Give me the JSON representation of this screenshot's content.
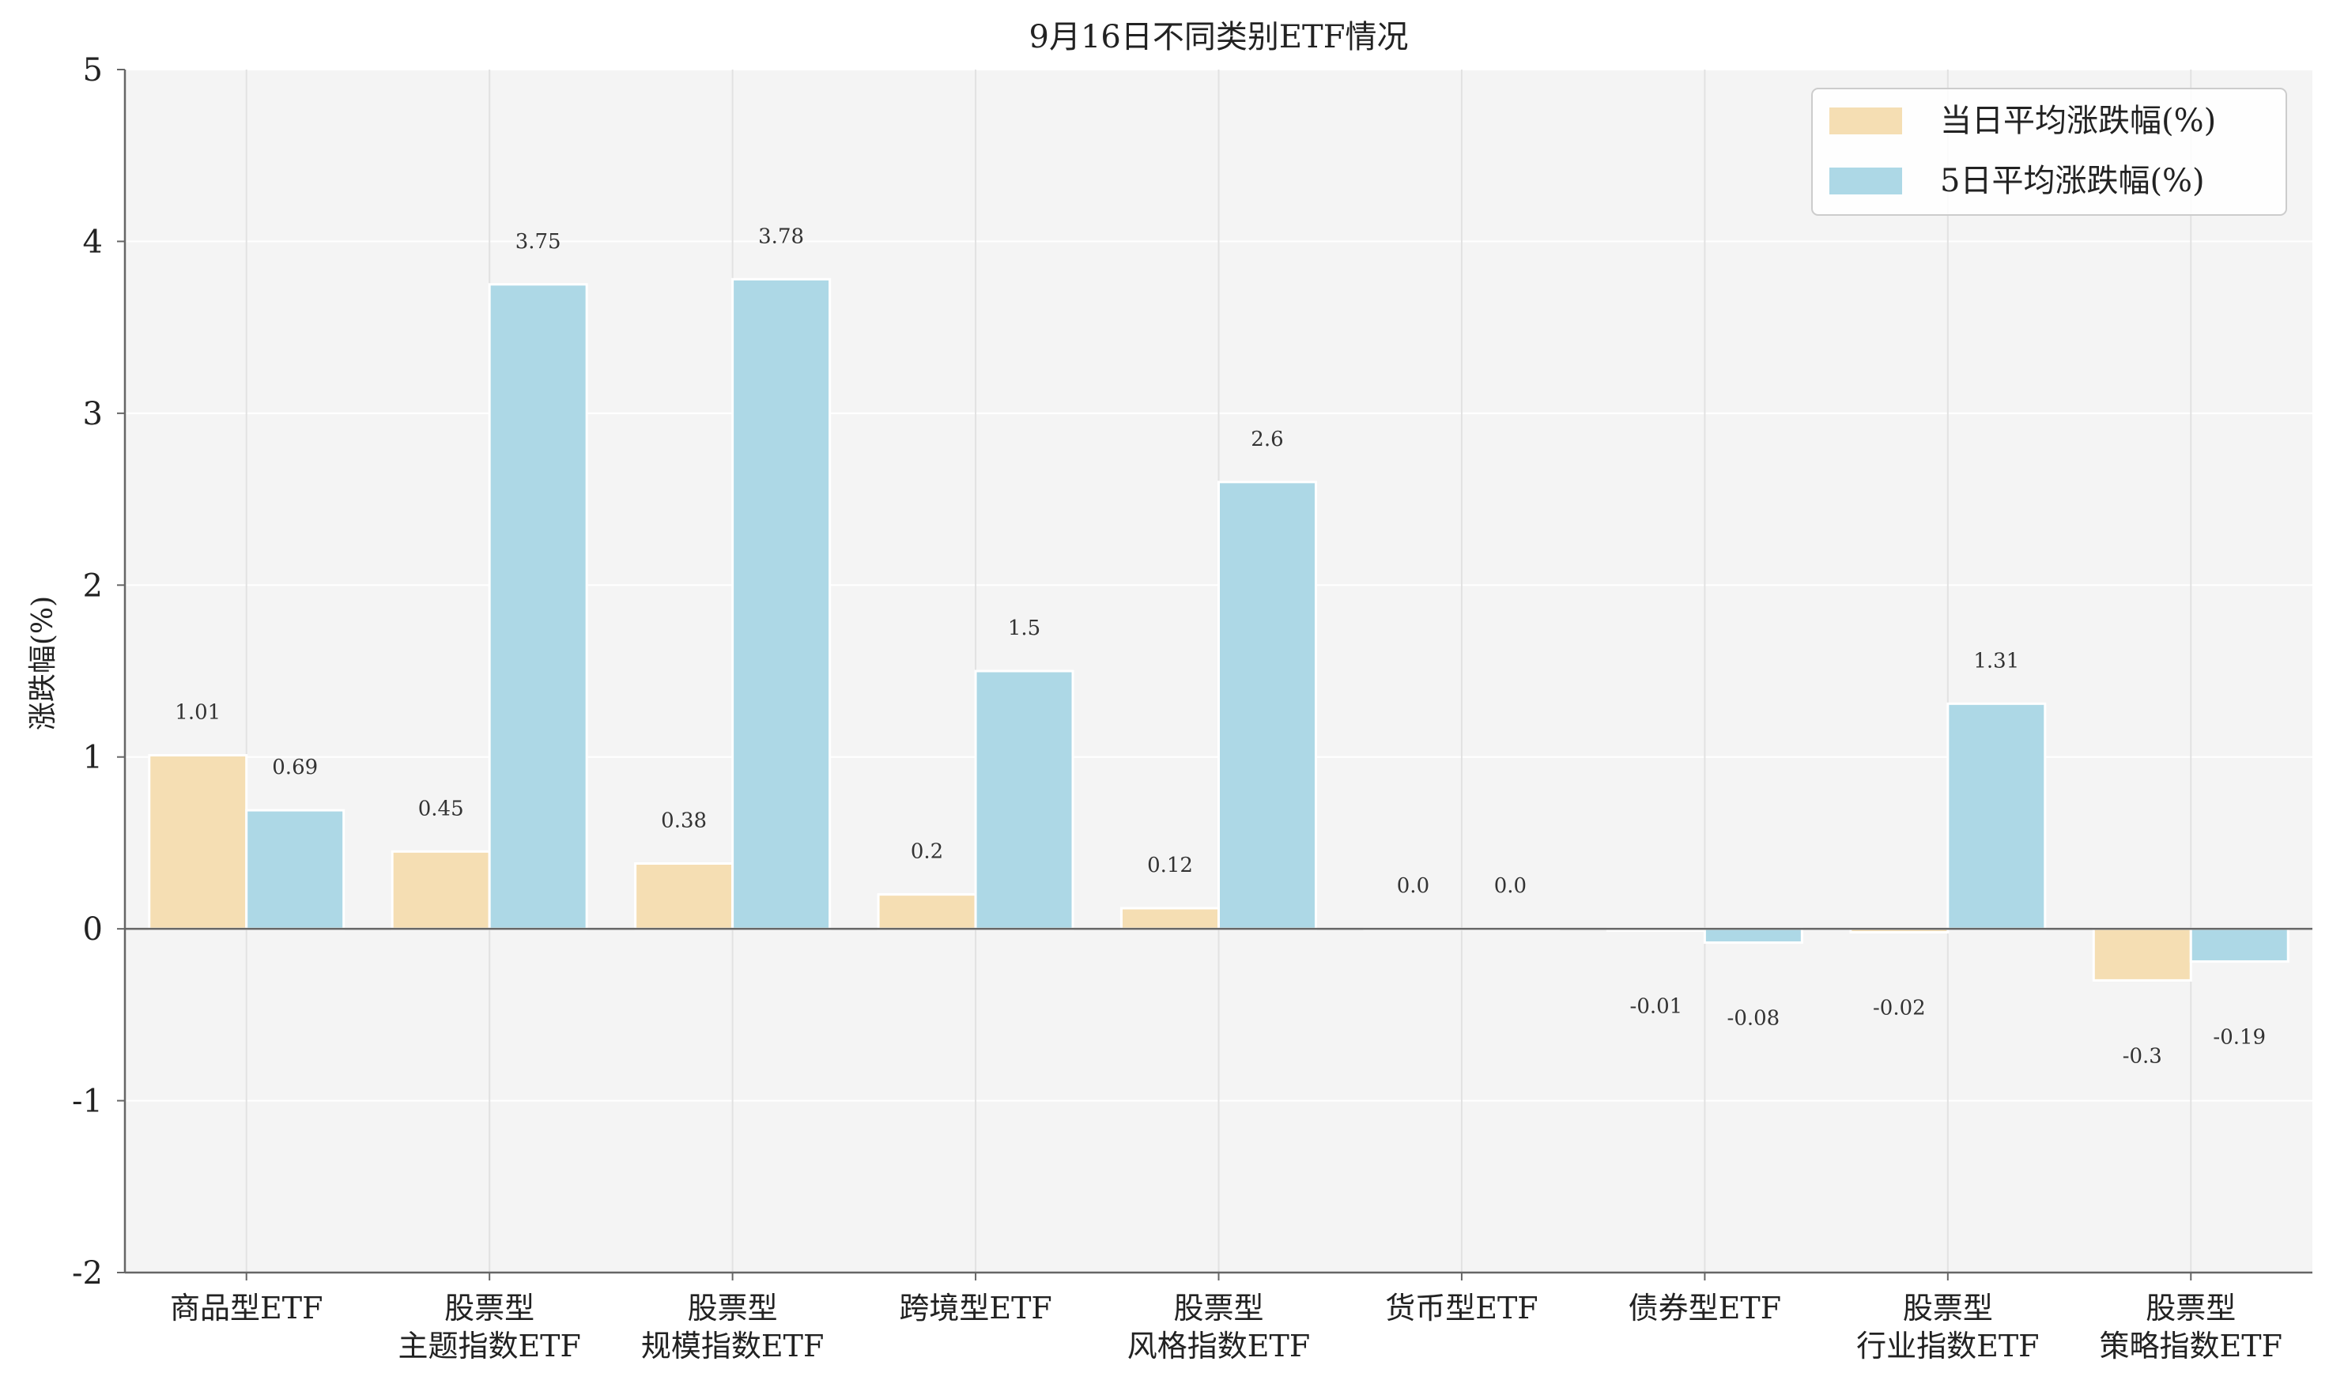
{
  "chart_data": {
    "type": "bar",
    "title": "9月16日不同类别ETF情况",
    "ylabel": "涨跌幅(%)",
    "xlabel": "",
    "ylim": [
      -2,
      5
    ],
    "yticks": [
      -2,
      -1,
      0,
      1,
      2,
      3,
      4,
      5
    ],
    "grid": true,
    "legend_position": "top-right",
    "categories": [
      [
        "商品型ETF"
      ],
      [
        "股票型",
        "主题指数ETF"
      ],
      [
        "股票型",
        "规模指数ETF"
      ],
      [
        "跨境型ETF"
      ],
      [
        "股票型",
        "风格指数ETF"
      ],
      [
        "货币型ETF"
      ],
      [
        "债券型ETF"
      ],
      [
        "股票型",
        "行业指数ETF"
      ],
      [
        "股票型",
        "策略指数ETF"
      ]
    ],
    "series": [
      {
        "name": "当日平均涨跌幅(%)",
        "color": "#f5deb3",
        "values": [
          1.01,
          0.45,
          0.38,
          0.2,
          0.12,
          0.0,
          -0.01,
          -0.02,
          -0.3
        ],
        "labels": [
          "1.01",
          "0.45",
          "0.38",
          "0.2",
          "0.12",
          "0.0",
          "-0.01",
          "-0.02",
          "-0.3"
        ]
      },
      {
        "name": "5日平均涨跌幅(%)",
        "color": "#add8e6",
        "values": [
          0.69,
          3.75,
          3.78,
          1.5,
          2.6,
          0.0,
          -0.08,
          1.31,
          -0.19
        ],
        "labels": [
          "0.69",
          "3.75",
          "3.78",
          "1.5",
          "2.6",
          "0.0",
          "-0.08",
          "1.31",
          "-0.19"
        ]
      }
    ]
  }
}
